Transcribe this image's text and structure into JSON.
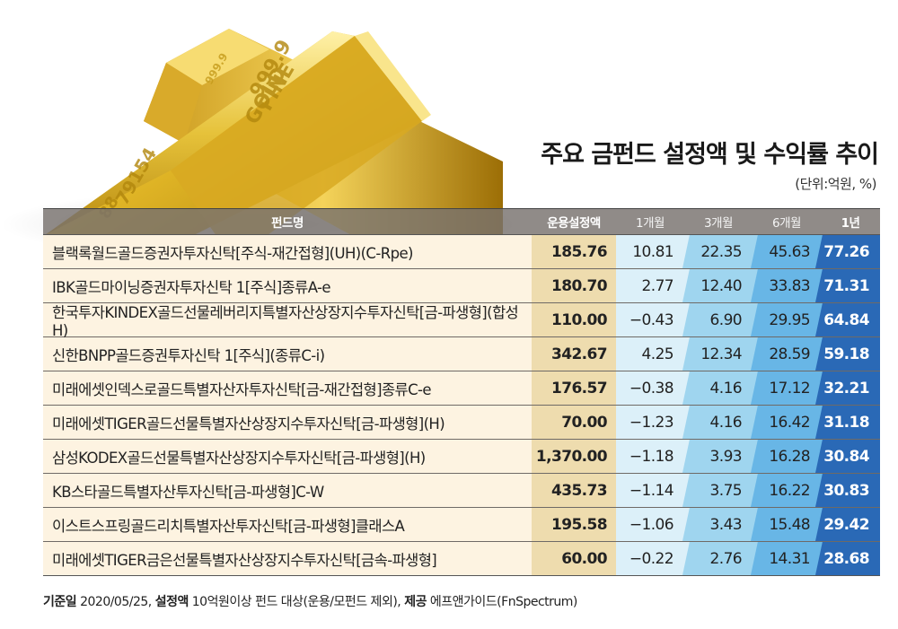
{
  "title": "주요 금펀드 설정액 및 수익률 추이",
  "unit": "(단위:억원, %)",
  "table": {
    "headers": [
      "펀드명",
      "운용설정액",
      "1개월",
      "3개월",
      "6개월",
      "1년"
    ],
    "rows": [
      {
        "name": "블랙록월드골드증권자투자신탁[주식-재간접형](UH)(C-Rpe)",
        "amount": "185.76",
        "m1": "10.81",
        "m3": "22.35",
        "m6": "45.63",
        "y1": "77.26"
      },
      {
        "name": "IBK골드마이닝증권자투자신탁 1[주식]종류A-e",
        "amount": "180.70",
        "m1": "2.77",
        "m3": "12.40",
        "m6": "33.83",
        "y1": "71.31"
      },
      {
        "name": "한국투자KINDEX골드선물레버리지특별자산상장지수투자신탁[금-파생형](합성 H)",
        "amount": "110.00",
        "m1": "−0.43",
        "m3": "6.90",
        "m6": "29.95",
        "y1": "64.84"
      },
      {
        "name": "신한BNPP골드증권투자신탁 1[주식](종류C-i)",
        "amount": "342.67",
        "m1": "4.25",
        "m3": "12.34",
        "m6": "28.59",
        "y1": "59.18"
      },
      {
        "name": "미래에셋인덱스로골드특별자산자투자신탁[금-재간접형]종류C-e",
        "amount": "176.57",
        "m1": "−0.38",
        "m3": "4.16",
        "m6": "17.12",
        "y1": "32.21"
      },
      {
        "name": "미래에셋TIGER골드선물특별자산상장지수투자신탁[금-파생형](H)",
        "amount": "70.00",
        "m1": "−1.23",
        "m3": "4.16",
        "m6": "16.42",
        "y1": "31.18"
      },
      {
        "name": "삼성KODEX골드선물특별자산상장지수투자신탁[금-파생형](H)",
        "amount": "1,370.00",
        "m1": "−1.18",
        "m3": "3.93",
        "m6": "16.28",
        "y1": "30.84"
      },
      {
        "name": "KB스타골드특별자산투자신탁[금-파생형]C-W",
        "amount": "435.73",
        "m1": "−1.14",
        "m3": "3.75",
        "m6": "16.22",
        "y1": "30.83"
      },
      {
        "name": "이스트스프링골드리치특별자산투자신탁[금-파생형]클래스A",
        "amount": "195.58",
        "m1": "−1.06",
        "m3": "3.43",
        "m6": "15.48",
        "y1": "29.42"
      },
      {
        "name": "미래에셋TIGER금은선물특별자산상장지수투자신탁[금속-파생형]",
        "amount": "60.00",
        "m1": "−0.22",
        "m3": "2.76",
        "m6": "14.31",
        "y1": "28.68"
      }
    ]
  },
  "footnote": {
    "label1": "기준일",
    "text1": " 2020/05/25, ",
    "label2": "설정액",
    "text2": " 10억원이상 펀드 대상(운용/모펀드 제외), ",
    "label3": "제공",
    "text3": " 에프앤가이드(FnSpectrum)"
  },
  "image": {
    "description": "gold-bars",
    "engraving_top": "999.9 FINE GOLD",
    "engraving_side": "79154 88"
  },
  "colors": {
    "name_bg": "#fdf3e1",
    "amount_bg": "#eedcae",
    "m1_bg": "#dcf0f9",
    "m3_bg": "#9fd5ef",
    "m6_bg": "#68b6e6",
    "y1_bg": "#2a69b6",
    "header_bg": "#78726e"
  },
  "chart_data": {
    "type": "table",
    "title": "주요 금펀드 설정액 및 수익률 추이",
    "subtitle": "(단위:억원, %)",
    "columns": [
      "펀드명",
      "운용설정액",
      "1개월",
      "3개월",
      "6개월",
      "1년"
    ],
    "rows": [
      [
        "블랙록월드골드증권자투자신탁[주식-재간접형](UH)(C-Rpe)",
        185.76,
        10.81,
        22.35,
        45.63,
        77.26
      ],
      [
        "IBK골드마이닝증권자투자신탁 1[주식]종류A-e",
        180.7,
        2.77,
        12.4,
        33.83,
        71.31
      ],
      [
        "한국투자KINDEX골드선물레버리지특별자산상장지수투자신탁[금-파생형](합성 H)",
        110.0,
        -0.43,
        6.9,
        29.95,
        64.84
      ],
      [
        "신한BNPP골드증권투자신탁 1[주식](종류C-i)",
        342.67,
        4.25,
        12.34,
        28.59,
        59.18
      ],
      [
        "미래에셋인덱스로골드특별자산자투자신탁[금-재간접형]종류C-e",
        176.57,
        -0.38,
        4.16,
        17.12,
        32.21
      ],
      [
        "미래에셋TIGER골드선물특별자산상장지수투자신탁[금-파생형](H)",
        70.0,
        -1.23,
        4.16,
        16.42,
        31.18
      ],
      [
        "삼성KODEX골드선물특별자산상장지수투자신탁[금-파생형](H)",
        1370.0,
        -1.18,
        3.93,
        16.28,
        30.84
      ],
      [
        "KB스타골드특별자산투자신탁[금-파생형]C-W",
        435.73,
        -1.14,
        3.75,
        16.22,
        30.83
      ],
      [
        "이스트스프링골드리치특별자산투자신탁[금-파생형]클래스A",
        195.58,
        -1.06,
        3.43,
        15.48,
        29.42
      ],
      [
        "미래에셋TIGER금은선물특별자산상장지수투자신탁[금속-파생형]",
        60.0,
        -0.22,
        2.76,
        14.31,
        28.68
      ]
    ],
    "note": "기준일 2020/05/25, 설정액 10억원이상 펀드 대상(운용/모펀드 제외), 제공 에프앤가이드(FnSpectrum)"
  }
}
